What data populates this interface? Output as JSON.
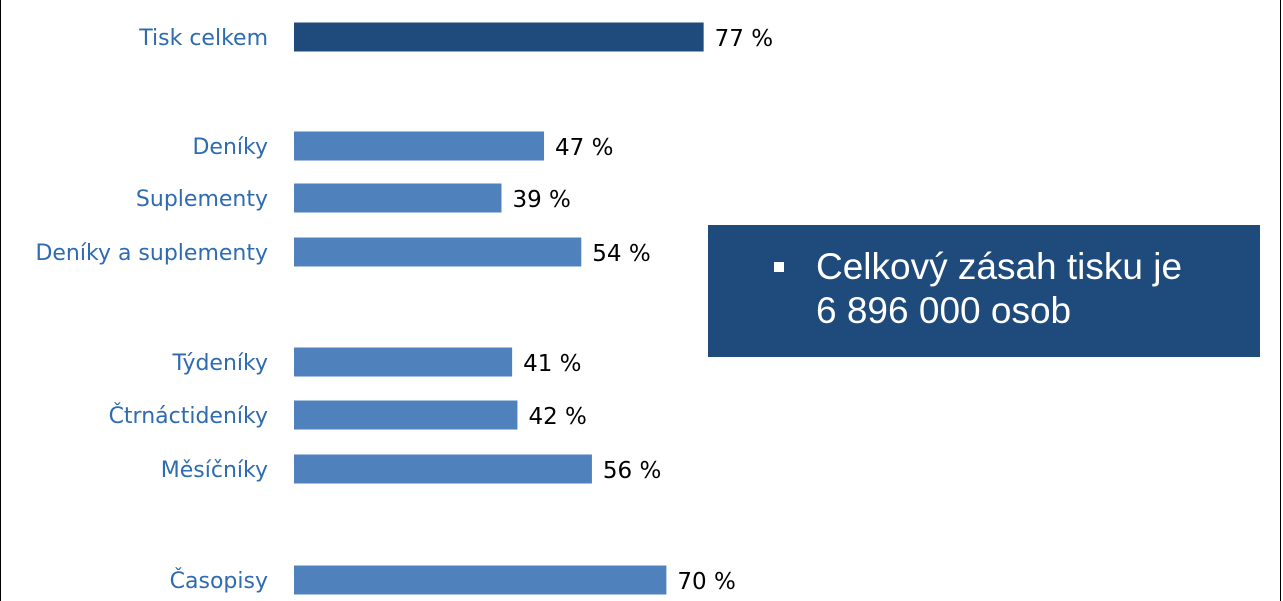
{
  "colors": {
    "highlight_bar": "#1f4a7c",
    "bar": "#4f81bd",
    "category_text": "#2e6bb0",
    "value_text": "#000000",
    "callout_bg": "#1f4a7c",
    "callout_text": "#ffffff"
  },
  "chart_data": {
    "type": "bar",
    "orientation": "horizontal",
    "unit": "%",
    "xlim": [
      0,
      100
    ],
    "grid": false,
    "legend": "none",
    "categories": [
      "Tisk celkem",
      "Deníky",
      "Suplementy",
      "Deníky a suplementy",
      "Týdeníky",
      "Čtrnáctideníky",
      "Měsíčníky",
      "Časopisy"
    ],
    "values": [
      77,
      47,
      39,
      54,
      41,
      42,
      56,
      70
    ],
    "value_labels": [
      "77 %",
      "47 %",
      "39 %",
      "54 %",
      "41 %",
      "42 %",
      "56 %",
      "70 %"
    ],
    "highlighted": [
      "Tisk celkem"
    ]
  },
  "callout": {
    "bullet_icon": "square-bullet-icon",
    "text": "Celkový zásah tisku je\n6 896 000 osob"
  }
}
